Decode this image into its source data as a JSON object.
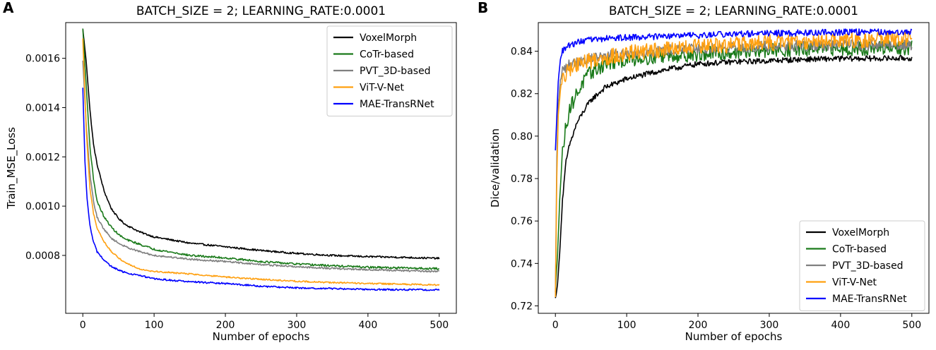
{
  "chart_data": [
    {
      "panel_letter": "A",
      "type": "line",
      "title": "BATCH_SIZE = 2; LEARNING_RATE:0.0001",
      "xlabel": "Number of epochs",
      "ylabel": "Train_MSE_Loss",
      "xlim": [
        -24,
        524
      ],
      "ylim": [
        0.000565,
        0.001745
      ],
      "xticks": [
        0,
        100,
        200,
        300,
        400,
        500
      ],
      "yticks": [
        0.0008,
        0.001,
        0.0012,
        0.0014,
        0.0016
      ],
      "ytick_labels": [
        "0.0008",
        "0.0010",
        "0.0012",
        "0.0014",
        "0.0016"
      ],
      "legend_position": "upper right",
      "series": [
        {
          "name": "VoxelMorph",
          "color": "#000000",
          "points": [
            [
              0,
              0.00172
            ],
            [
              5,
              0.00158
            ],
            [
              10,
              0.00139
            ],
            [
              15,
              0.00125
            ],
            [
              20,
              0.00117
            ],
            [
              30,
              0.00106
            ],
            [
              40,
              0.00099
            ],
            [
              50,
              0.00095
            ],
            [
              60,
              0.000925
            ],
            [
              80,
              0.000895
            ],
            [
              100,
              0.000875
            ],
            [
              150,
              0.00085
            ],
            [
              200,
              0.000835
            ],
            [
              250,
              0.00082
            ],
            [
              300,
              0.000808
            ],
            [
              350,
              0.0008
            ],
            [
              400,
              0.000795
            ],
            [
              450,
              0.000792
            ],
            [
              500,
              0.000788
            ]
          ],
          "noise": 3.5e-06
        },
        {
          "name": "CoTr-based",
          "color": "#1a7a1a",
          "points": [
            [
              0,
              0.00172
            ],
            [
              5,
              0.00148
            ],
            [
              10,
              0.00124
            ],
            [
              15,
              0.00111
            ],
            [
              20,
              0.00102
            ],
            [
              30,
              0.000955
            ],
            [
              40,
              0.000915
            ],
            [
              50,
              0.000885
            ],
            [
              60,
              0.000865
            ],
            [
              80,
              0.000845
            ],
            [
              100,
              0.000825
            ],
            [
              150,
              0.0008
            ],
            [
              200,
              0.00079
            ],
            [
              250,
              0.000775
            ],
            [
              300,
              0.000765
            ],
            [
              350,
              0.000758
            ],
            [
              400,
              0.000752
            ],
            [
              450,
              0.000749
            ],
            [
              500,
              0.000746
            ]
          ],
          "noise": 4e-06
        },
        {
          "name": "PVT_3D-based",
          "color": "#7f7f7f",
          "points": [
            [
              0,
              0.00159
            ],
            [
              5,
              0.00132
            ],
            [
              10,
              0.00113
            ],
            [
              15,
              0.00102
            ],
            [
              20,
              0.000955
            ],
            [
              30,
              0.000905
            ],
            [
              40,
              0.00087
            ],
            [
              50,
              0.00085
            ],
            [
              60,
              0.000835
            ],
            [
              80,
              0.000815
            ],
            [
              100,
              0.0008
            ],
            [
              150,
              0.000785
            ],
            [
              200,
              0.000775
            ],
            [
              250,
              0.000763
            ],
            [
              300,
              0.000754
            ],
            [
              350,
              0.000747
            ],
            [
              400,
              0.000742
            ],
            [
              450,
              0.000738
            ],
            [
              500,
              0.000735
            ]
          ],
          "noise": 3.5e-06
        },
        {
          "name": "ViT-V-Net",
          "color": "#ffa010",
          "points": [
            [
              0,
              0.00168
            ],
            [
              5,
              0.0013
            ],
            [
              10,
              0.00107
            ],
            [
              15,
              0.00097
            ],
            [
              20,
              0.00091
            ],
            [
              30,
              0.000855
            ],
            [
              40,
              0.000815
            ],
            [
              50,
              0.00079
            ],
            [
              60,
              0.00077
            ],
            [
              80,
              0.000745
            ],
            [
              100,
              0.000735
            ],
            [
              150,
              0.000725
            ],
            [
              200,
              0.000712
            ],
            [
              250,
              0.000703
            ],
            [
              300,
              0.000695
            ],
            [
              350,
              0.00069
            ],
            [
              400,
              0.000686
            ],
            [
              450,
              0.000683
            ],
            [
              500,
              0.00068
            ]
          ],
          "noise": 3e-06
        },
        {
          "name": "MAE-TransRNet",
          "color": "#0000ff",
          "points": [
            [
              0,
              0.00148
            ],
            [
              3,
              0.00118
            ],
            [
              6,
              0.00103
            ],
            [
              10,
              0.00092
            ],
            [
              15,
              0.000855
            ],
            [
              20,
              0.000815
            ],
            [
              30,
              0.00078
            ],
            [
              40,
              0.000755
            ],
            [
              50,
              0.00074
            ],
            [
              60,
              0.00073
            ],
            [
              80,
              0.000718
            ],
            [
              100,
              0.000705
            ],
            [
              150,
              0.000693
            ],
            [
              200,
              0.000686
            ],
            [
              250,
              0.000675
            ],
            [
              300,
              0.000668
            ],
            [
              350,
              0.000665
            ],
            [
              400,
              0.000662
            ],
            [
              450,
              0.000661
            ],
            [
              500,
              0.00066
            ]
          ],
          "noise": 3.5e-06
        }
      ]
    },
    {
      "panel_letter": "B",
      "type": "line",
      "title": "BATCH_SIZE = 2; LEARNING_RATE:0.0001",
      "xlabel": "Number of epochs",
      "ylabel": "Dice/validation",
      "xlim": [
        -24,
        524
      ],
      "ylim": [
        0.7165,
        0.8535
      ],
      "xticks": [
        0,
        100,
        200,
        300,
        400,
        500
      ],
      "yticks": [
        0.72,
        0.74,
        0.76,
        0.78,
        0.8,
        0.82,
        0.84
      ],
      "ytick_labels": [
        "0.72",
        "0.74",
        "0.76",
        "0.78",
        "0.80",
        "0.82",
        "0.84"
      ],
      "legend_position": "lower right",
      "series": [
        {
          "name": "VoxelMorph",
          "color": "#000000",
          "points": [
            [
              0,
              0.7235
            ],
            [
              3,
              0.73
            ],
            [
              6,
              0.745
            ],
            [
              10,
              0.77
            ],
            [
              15,
              0.788
            ],
            [
              20,
              0.796
            ],
            [
              30,
              0.806
            ],
            [
              40,
              0.812
            ],
            [
              50,
              0.817
            ],
            [
              70,
              0.823
            ],
            [
              100,
              0.827
            ],
            [
              150,
              0.831
            ],
            [
              200,
              0.834
            ],
            [
              250,
              0.835
            ],
            [
              300,
              0.8355
            ],
            [
              350,
              0.8362
            ],
            [
              400,
              0.8365
            ],
            [
              450,
              0.8366
            ],
            [
              500,
              0.8367
            ]
          ],
          "noise": 0.0013
        },
        {
          "name": "CoTr-based",
          "color": "#1a7a1a",
          "points": [
            [
              0,
              0.726
            ],
            [
              3,
              0.745
            ],
            [
              6,
              0.77
            ],
            [
              10,
              0.793
            ],
            [
              15,
              0.805
            ],
            [
              20,
              0.813
            ],
            [
              30,
              0.82
            ],
            [
              40,
              0.826
            ],
            [
              50,
              0.83
            ],
            [
              70,
              0.834
            ],
            [
              100,
              0.836
            ],
            [
              150,
              0.838
            ],
            [
              200,
              0.8385
            ],
            [
              250,
              0.8395
            ],
            [
              300,
              0.8405
            ],
            [
              350,
              0.841
            ],
            [
              400,
              0.8413
            ],
            [
              450,
              0.8414
            ],
            [
              500,
              0.8415
            ]
          ],
          "noise": 0.0035
        },
        {
          "name": "PVT_3D-based",
          "color": "#7f7f7f",
          "points": [
            [
              0,
              0.726
            ],
            [
              2,
              0.79
            ],
            [
              4,
              0.815
            ],
            [
              7,
              0.826
            ],
            [
              10,
              0.831
            ],
            [
              20,
              0.834
            ],
            [
              40,
              0.836
            ],
            [
              70,
              0.838
            ],
            [
              100,
              0.839
            ],
            [
              150,
              0.8405
            ],
            [
              200,
              0.8412
            ],
            [
              250,
              0.8418
            ],
            [
              300,
              0.8423
            ],
            [
              350,
              0.8427
            ],
            [
              400,
              0.8429
            ],
            [
              450,
              0.843
            ],
            [
              500,
              0.843
            ]
          ],
          "noise": 0.0025
        },
        {
          "name": "ViT-V-Net",
          "color": "#ffa010",
          "points": [
            [
              0,
              0.7235
            ],
            [
              2,
              0.78
            ],
            [
              4,
              0.81
            ],
            [
              7,
              0.822
            ],
            [
              10,
              0.826
            ],
            [
              20,
              0.832
            ],
            [
              40,
              0.835
            ],
            [
              70,
              0.837
            ],
            [
              100,
              0.839
            ],
            [
              150,
              0.8405
            ],
            [
              200,
              0.842
            ],
            [
              250,
              0.843
            ],
            [
              300,
              0.844
            ],
            [
              350,
              0.8447
            ],
            [
              400,
              0.8452
            ],
            [
              450,
              0.8455
            ],
            [
              500,
              0.8458
            ]
          ],
          "noise": 0.0038
        },
        {
          "name": "MAE-TransRNet",
          "color": "#0000ff",
          "points": [
            [
              0,
              0.793
            ],
            [
              2,
              0.81
            ],
            [
              4,
              0.826
            ],
            [
              7,
              0.836
            ],
            [
              10,
              0.84
            ],
            [
              20,
              0.843
            ],
            [
              40,
              0.845
            ],
            [
              70,
              0.846
            ],
            [
              100,
              0.8465
            ],
            [
              150,
              0.847
            ],
            [
              200,
              0.8475
            ],
            [
              250,
              0.848
            ],
            [
              300,
              0.8484
            ],
            [
              350,
              0.8487
            ],
            [
              400,
              0.849
            ],
            [
              450,
              0.849
            ],
            [
              500,
              0.849
            ]
          ],
          "noise": 0.0015
        }
      ]
    }
  ]
}
